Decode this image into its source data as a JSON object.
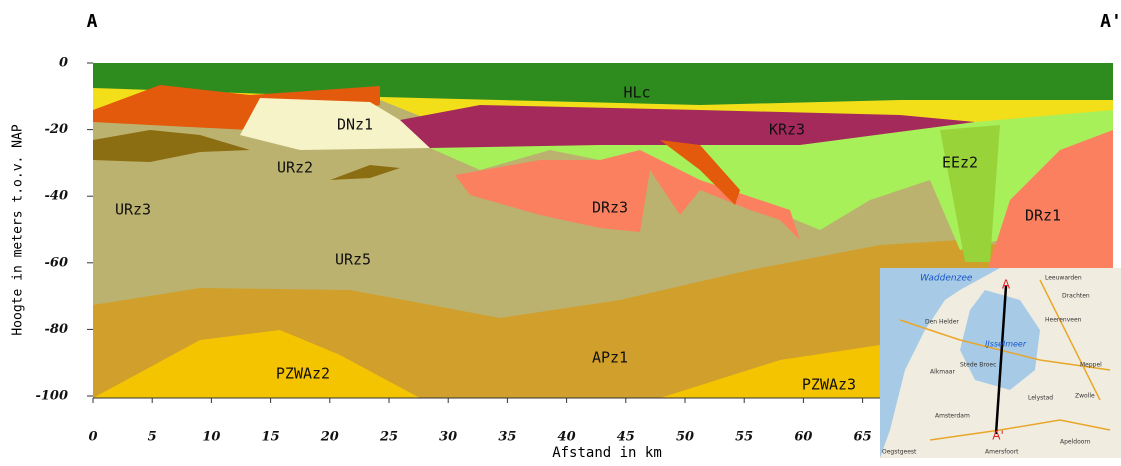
{
  "header": {
    "start_label": "A",
    "end_label": "A'"
  },
  "axes": {
    "y_label": "Hoogte in meters t.o.v. NAP",
    "x_label": "Afstand in km",
    "xticks": [
      0,
      5,
      10,
      15,
      20,
      25,
      30,
      35,
      40,
      45,
      50,
      55,
      60,
      65
    ],
    "yticks": [
      0,
      -20,
      -40,
      -60,
      -80,
      -100
    ]
  },
  "units": [
    "HLc",
    "DNz1",
    "KRz3",
    "EEz2",
    "URz2",
    "URz3",
    "DRz3",
    "DRz1",
    "URz5",
    "APz1",
    "PZWAz2",
    "PZWAz3"
  ],
  "map": {
    "labels": [
      "Waddenzee",
      "Leeuwarden",
      "Drachten",
      "Den Helder",
      "Heerenveen",
      "IJsselmeer",
      "Stede Broec",
      "Alkmaar",
      "Lelystad",
      "Zwolle",
      "Amsterdam",
      "Amersfoort",
      "Apeldoorn",
      "Meppel",
      "Oegstgeest"
    ],
    "start": "A",
    "end": "A'"
  }
}
